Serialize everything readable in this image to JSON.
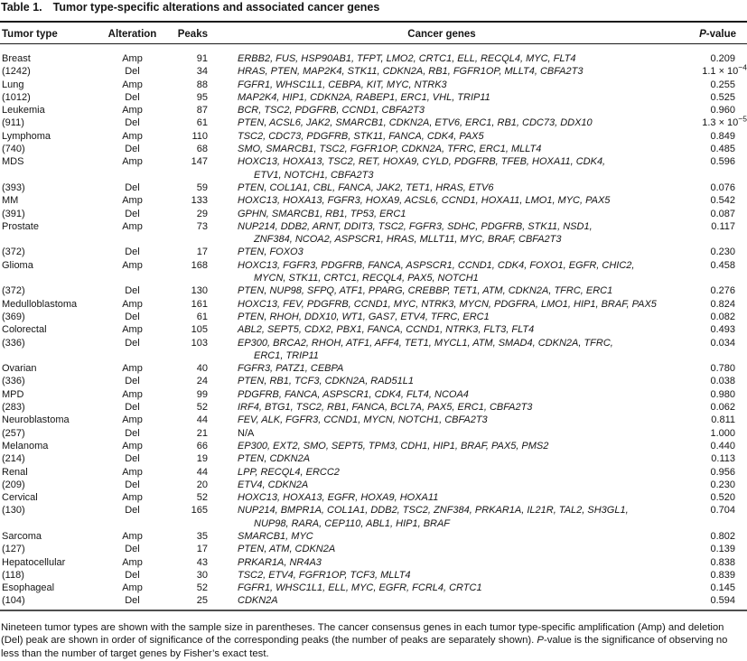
{
  "title": {
    "label": "Table 1.",
    "text": "Tumor type-specific alterations and associated cancer genes"
  },
  "columns": {
    "tumor_type": "Tumor type",
    "alteration": "Alteration",
    "peaks": "Peaks",
    "cancer_genes": "Cancer genes",
    "p_value_italic": "P",
    "p_value_rest": "-value"
  },
  "colors": {
    "text": "#151515",
    "header_rule": "#1a1a1a",
    "bottom_rule": "#4f4f4f",
    "background": "#ffffff"
  },
  "rows": [
    {
      "tumor": "Breast",
      "alt": "Amp",
      "peaks": "91",
      "genes": [
        "ERBB2, FUS, HSP90AB1, TFPT, LMO2, CRTC1, ELL, RECQL4, MYC, FLT4"
      ],
      "p": "0.209"
    },
    {
      "tumor": "(1242)",
      "alt": "Del",
      "peaks": "34",
      "genes": [
        "HRAS, PTEN, MAP2K4, STK11, CDKN2A, RB1, FGFR1OP, MLLT4, CBFA2T3"
      ],
      "p": "1.1 × 10",
      "p_sup": "−4"
    },
    {
      "tumor": "Lung",
      "alt": "Amp",
      "peaks": "88",
      "genes": [
        "FGFR1, WHSC1L1, CEBPA, KIT, MYC, NTRK3"
      ],
      "p": "0.255"
    },
    {
      "tumor": "(1012)",
      "alt": "Del",
      "peaks": "95",
      "genes": [
        "MAP2K4, HIP1, CDKN2A, RABEP1, ERC1, VHL, TRIP11"
      ],
      "p": "0.525"
    },
    {
      "tumor": "Leukemia",
      "alt": "Amp",
      "peaks": "87",
      "genes": [
        "BCR, TSC2, PDGFRB, CCND1, CBFA2T3"
      ],
      "p": "0.960"
    },
    {
      "tumor": "(911)",
      "alt": "Del",
      "peaks": "61",
      "genes": [
        "PTEN, ACSL6, JAK2, SMARCB1, CDKN2A, ETV6, ERC1, RB1, CDC73, DDX10"
      ],
      "p": "1.3 × 10",
      "p_sup": "−5"
    },
    {
      "tumor": "Lymphoma",
      "alt": "Amp",
      "peaks": "110",
      "genes": [
        "TSC2, CDC73, PDGFRB, STK11, FANCA, CDK4, PAX5"
      ],
      "p": "0.849"
    },
    {
      "tumor": "(740)",
      "alt": "Del",
      "peaks": "68",
      "genes": [
        "SMO, SMARCB1, TSC2, FGFR1OP, CDKN2A, TFRC, ERC1, MLLT4"
      ],
      "p": "0.485"
    },
    {
      "tumor": "MDS",
      "alt": "Amp",
      "peaks": "147",
      "genes": [
        "HOXC13, HOXA13, TSC2, RET, HOXA9, CYLD, PDGFRB, TFEB, HOXA11, CDK4,",
        "ETV1, NOTCH1, CBFA2T3"
      ],
      "p": "0.596"
    },
    {
      "tumor": "(393)",
      "alt": "Del",
      "peaks": "59",
      "genes": [
        "PTEN, COL1A1, CBL, FANCA, JAK2, TET1, HRAS, ETV6"
      ],
      "p": "0.076"
    },
    {
      "tumor": "MM",
      "alt": "Amp",
      "peaks": "133",
      "genes": [
        "HOXC13, HOXA13, FGFR3, HOXA9, ACSL6, CCND1, HOXA11, LMO1, MYC, PAX5"
      ],
      "p": "0.542"
    },
    {
      "tumor": "(391)",
      "alt": "Del",
      "peaks": "29",
      "genes": [
        "GPHN, SMARCB1, RB1, TP53, ERC1"
      ],
      "p": "0.087"
    },
    {
      "tumor": "Prostate",
      "alt": "Amp",
      "peaks": "73",
      "genes": [
        "NUP214, DDB2, ARNT, DDIT3, TSC2, FGFR3, SDHC, PDGFRB, STK11, NSD1,",
        "ZNF384, NCOA2, ASPSCR1, HRAS, MLLT11, MYC, BRAF, CBFA2T3"
      ],
      "p": "0.117"
    },
    {
      "tumor": "(372)",
      "alt": "Del",
      "peaks": "17",
      "genes": [
        "PTEN, FOXO3"
      ],
      "p": "0.230"
    },
    {
      "tumor": "Glioma",
      "alt": "Amp",
      "peaks": "168",
      "genes": [
        "HOXC13, FGFR3, PDGFRB, FANCA, ASPSCR1, CCND1, CDK4, FOXO1, EGFR, CHIC2,",
        "MYCN, STK11, CRTC1, RECQL4, PAX5, NOTCH1"
      ],
      "p": "0.458"
    },
    {
      "tumor": "(372)",
      "alt": "Del",
      "peaks": "130",
      "genes": [
        "PTEN, NUP98, SFPQ, ATF1, PPARG, CREBBP, TET1, ATM, CDKN2A, TFRC, ERC1"
      ],
      "p": "0.276"
    },
    {
      "tumor": "Medulloblastoma",
      "alt": "Amp",
      "peaks": "161",
      "genes": [
        "HOXC13, FEV, PDGFRB, CCND1, MYC, NTRK3, MYCN, PDGFRA, LMO1, HIP1, BRAF, PAX5"
      ],
      "p": "0.824"
    },
    {
      "tumor": "(369)",
      "alt": "Del",
      "peaks": "61",
      "genes": [
        "PTEN, RHOH, DDX10, WT1, GAS7, ETV4, TFRC, ERC1"
      ],
      "p": "0.082"
    },
    {
      "tumor": "Colorectal",
      "alt": "Amp",
      "peaks": "105",
      "genes": [
        "ABL2, SEPT5, CDX2, PBX1, FANCA, CCND1, NTRK3, FLT3, FLT4"
      ],
      "p": "0.493"
    },
    {
      "tumor": "(336)",
      "alt": "Del",
      "peaks": "103",
      "genes": [
        "EP300, BRCA2, RHOH, ATF1, AFF4, TET1, MYCL1, ATM, SMAD4, CDKN2A, TFRC,",
        "ERC1, TRIP11"
      ],
      "p": "0.034"
    },
    {
      "tumor": "Ovarian",
      "alt": "Amp",
      "peaks": "40",
      "genes": [
        "FGFR3, PATZ1, CEBPA"
      ],
      "p": "0.780"
    },
    {
      "tumor": "(336)",
      "alt": "Del",
      "peaks": "24",
      "genes": [
        "PTEN, RB1, TCF3, CDKN2A, RAD51L1"
      ],
      "p": "0.038"
    },
    {
      "tumor": "MPD",
      "alt": "Amp",
      "peaks": "99",
      "genes": [
        "PDGFRB, FANCA, ASPSCR1, CDK4, FLT4, NCOA4"
      ],
      "p": "0.980"
    },
    {
      "tumor": "(283)",
      "alt": "Del",
      "peaks": "52",
      "genes": [
        "IRF4, BTG1, TSC2, RB1, FANCA, BCL7A, PAX5, ERC1, CBFA2T3"
      ],
      "p": "0.062"
    },
    {
      "tumor": "Neuroblastoma",
      "alt": "Amp",
      "peaks": "44",
      "genes": [
        "FEV, ALK, FGFR3, CCND1, MYCN, NOTCH1, CBFA2T3"
      ],
      "p": "0.811"
    },
    {
      "tumor": "(257)",
      "alt": "Del",
      "peaks": "21",
      "genes": [
        "N/A"
      ],
      "plain": true,
      "p": "1.000"
    },
    {
      "tumor": "Melanoma",
      "alt": "Amp",
      "peaks": "66",
      "genes": [
        "EP300, EXT2, SMO, SEPT5, TPM3, CDH1, HIP1, BRAF, PAX5, PMS2"
      ],
      "p": "0.440"
    },
    {
      "tumor": "(214)",
      "alt": "Del",
      "peaks": "19",
      "genes": [
        "PTEN, CDKN2A"
      ],
      "p": "0.113"
    },
    {
      "tumor": "Renal",
      "alt": "Amp",
      "peaks": "44",
      "genes": [
        "LPP, RECQL4, ERCC2"
      ],
      "p": "0.956"
    },
    {
      "tumor": "(209)",
      "alt": "Del",
      "peaks": "20",
      "genes": [
        "ETV4, CDKN2A"
      ],
      "p": "0.230"
    },
    {
      "tumor": "Cervical",
      "alt": "Amp",
      "peaks": "52",
      "genes": [
        "HOXC13, HOXA13, EGFR, HOXA9, HOXA11"
      ],
      "p": "0.520"
    },
    {
      "tumor": "(130)",
      "alt": "Del",
      "peaks": "165",
      "genes": [
        "NUP214, BMPR1A, COL1A1, DDB2, TSC2, ZNF384, PRKAR1A, IL21R, TAL2, SH3GL1,",
        "NUP98, RARA, CEP110, ABL1, HIP1, BRAF"
      ],
      "p": "0.704"
    },
    {
      "tumor": "Sarcoma",
      "alt": "Amp",
      "peaks": "35",
      "genes": [
        "SMARCB1, MYC"
      ],
      "p": "0.802"
    },
    {
      "tumor": "(127)",
      "alt": "Del",
      "peaks": "17",
      "genes": [
        "PTEN, ATM, CDKN2A"
      ],
      "p": "0.139"
    },
    {
      "tumor": "Hepatocellular",
      "alt": "Amp",
      "peaks": "43",
      "genes": [
        "PRKAR1A, NR4A3"
      ],
      "p": "0.838"
    },
    {
      "tumor": "(118)",
      "alt": "Del",
      "peaks": "30",
      "genes": [
        "TSC2, ETV4, FGFR1OP, TCF3, MLLT4"
      ],
      "p": "0.839"
    },
    {
      "tumor": "Esophageal",
      "alt": "Amp",
      "peaks": "52",
      "genes": [
        "FGFR1, WHSC1L1, ELL, MYC, EGFR, FCRL4, CRTC1"
      ],
      "p": "0.145"
    },
    {
      "tumor": "(104)",
      "alt": "Del",
      "peaks": "25",
      "genes": [
        "CDKN2A"
      ],
      "p": "0.594"
    }
  ],
  "footnote": {
    "part1": "Nineteen tumor types are shown with the sample size in parentheses. The cancer consensus genes in each tumor type-specific amplification (Amp) and deletion (Del) peak are shown in order of significance of the corresponding peaks (the number of peaks are separately shown). ",
    "p_italic": "P",
    "part2": "-value is the significance of observing no less than the number of target genes by Fisher’s exact test."
  }
}
